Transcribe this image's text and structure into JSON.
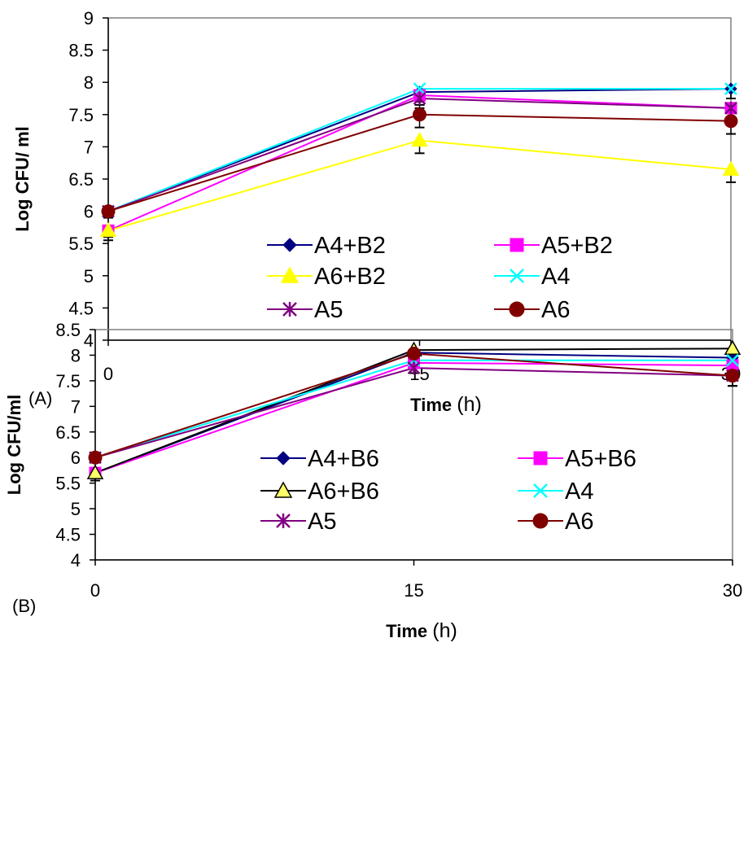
{
  "chart_data": [
    {
      "type": "line",
      "panel_label": "(A)",
      "ylabel": "Log CFU/ ml",
      "xlabel_bold": "Time",
      "xlabel_unit": "(h)",
      "x": [
        0,
        15,
        30
      ],
      "x_ticks": [
        "0",
        "15",
        "30"
      ],
      "ylim": [
        4,
        9
      ],
      "y_ticks": [
        "4",
        "4.5",
        "5",
        "5.5",
        "6",
        "6.5",
        "7",
        "7.5",
        "8",
        "8.5",
        "9"
      ],
      "grid": false,
      "legend_position": "lower-right",
      "series": [
        {
          "name": "A4+B2",
          "values": [
            6.0,
            7.85,
            7.9
          ],
          "color": "#000080",
          "marker": "diamond",
          "error": [
            0.1,
            0.15,
            0.15
          ]
        },
        {
          "name": "A5+B2",
          "values": [
            5.7,
            7.8,
            7.6
          ],
          "color": "#ff00ff",
          "marker": "square",
          "error": [
            0.1,
            0.15,
            0.15
          ]
        },
        {
          "name": "A6+B2",
          "values": [
            5.7,
            7.1,
            6.65
          ],
          "color": "#ffff00",
          "marker": "triangle",
          "error": [
            0.15,
            0.2,
            0.2
          ]
        },
        {
          "name": "A4",
          "values": [
            6.0,
            7.9,
            7.9
          ],
          "color": "#00ffff",
          "marker": "x",
          "error": [
            0.1,
            0.15,
            0.15
          ]
        },
        {
          "name": "A5",
          "values": [
            6.0,
            7.75,
            7.6
          ],
          "color": "#800080",
          "marker": "star",
          "error": [
            0.1,
            0.15,
            0.15
          ]
        },
        {
          "name": "A6",
          "values": [
            6.0,
            7.5,
            7.4
          ],
          "color": "#800000",
          "marker": "circle",
          "error": [
            0.1,
            0.2,
            0.2
          ]
        }
      ]
    },
    {
      "type": "line",
      "panel_label": "(B)",
      "ylabel": "Log CFU/ml",
      "xlabel_bold": "Time",
      "xlabel_unit": "(h)",
      "x": [
        0,
        15,
        30
      ],
      "x_ticks": [
        "0",
        "15",
        "30"
      ],
      "ylim": [
        4,
        8.5
      ],
      "y_ticks": [
        "4",
        "4.5",
        "5",
        "5.5",
        "6",
        "6.5",
        "7",
        "7.5",
        "8",
        "8.5"
      ],
      "grid": false,
      "legend_position": "lower-right",
      "series": [
        {
          "name": "A4+B6",
          "values": [
            5.7,
            8.05,
            7.95
          ],
          "color": "#000080",
          "marker": "diamond",
          "error": [
            0.1,
            0.1,
            0.15
          ]
        },
        {
          "name": "A5+B6",
          "values": [
            5.7,
            7.85,
            7.8
          ],
          "color": "#ff00ff",
          "marker": "square",
          "error": [
            0.1,
            0.1,
            0.15
          ]
        },
        {
          "name": "A6+B6",
          "values": [
            5.7,
            8.1,
            8.13
          ],
          "color": "#000000",
          "fill": "#ffff66",
          "marker": "triangle",
          "error": [
            0.15,
            0.1,
            0.1
          ]
        },
        {
          "name": "A4",
          "values": [
            6.0,
            7.9,
            7.9
          ],
          "color": "#00ffff",
          "marker": "x",
          "error": [
            0.1,
            0.1,
            0.15
          ]
        },
        {
          "name": "A5",
          "values": [
            6.0,
            7.75,
            7.6
          ],
          "color": "#800080",
          "marker": "star",
          "error": [
            0.1,
            0.1,
            0.2
          ]
        },
        {
          "name": "A6",
          "values": [
            6.0,
            8.03,
            7.6
          ],
          "color": "#800000",
          "marker": "circle",
          "error": [
            0.1,
            0.1,
            0.2
          ]
        }
      ]
    }
  ]
}
